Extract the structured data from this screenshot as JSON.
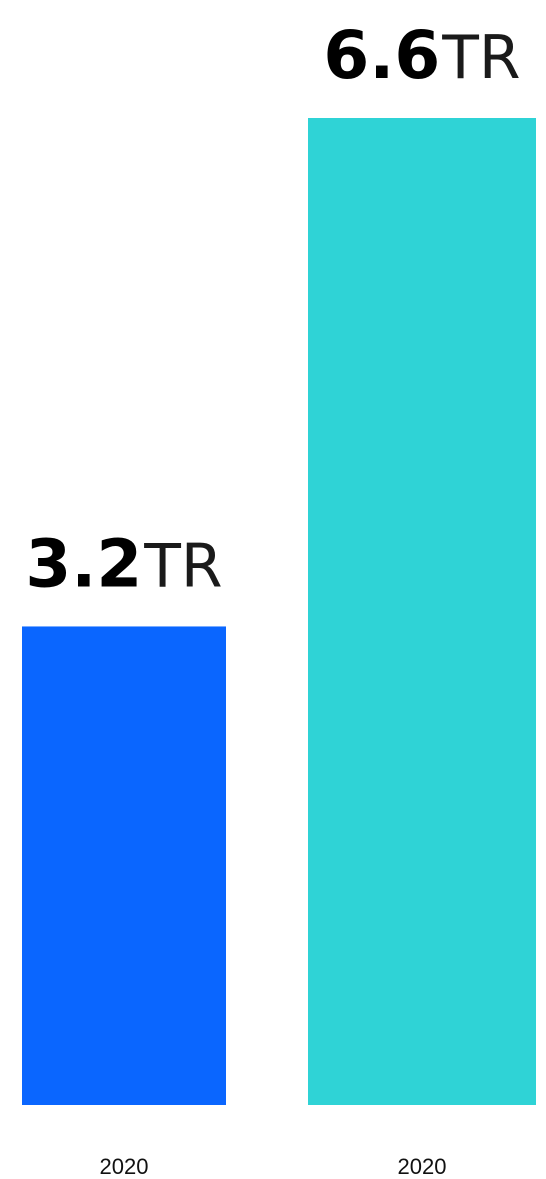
{
  "chart_data": {
    "type": "bar",
    "categories": [
      "2020",
      "2020"
    ],
    "values": [
      3.2,
      6.6
    ],
    "value_labels": [
      {
        "number": "3.2",
        "unit": "TR"
      },
      {
        "number": "6.6",
        "unit": "TR"
      }
    ],
    "colors": [
      "#0A66FF",
      "#2FD3D6"
    ],
    "title": "",
    "xlabel": "",
    "ylabel": "",
    "ylim": [
      0,
      6.6
    ],
    "grid": false,
    "legend": "none"
  }
}
